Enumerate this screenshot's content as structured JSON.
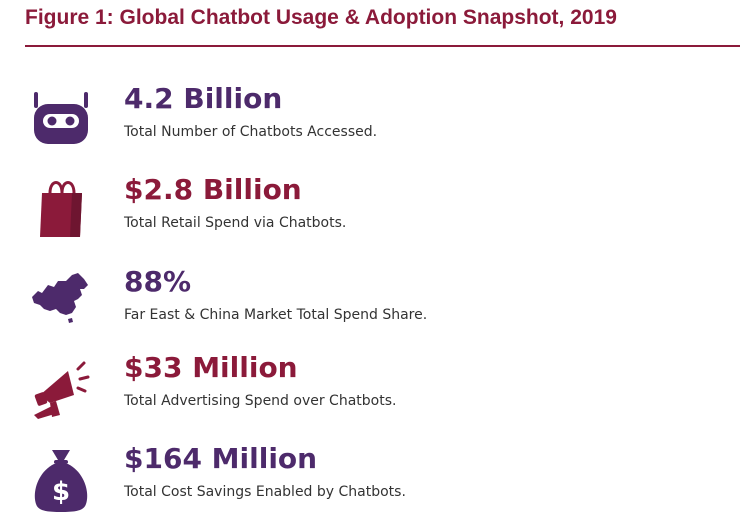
{
  "title": "Figure 1: Global Chatbot Usage & Adoption Snapshot, 2019",
  "colors": {
    "maroon": "#8b1a3a",
    "purple": "#4d2a6b",
    "text": "#333333"
  },
  "stats": [
    {
      "value": "4.2 Billion",
      "description": "Total Number of Chatbots Accessed.",
      "icon": "robot-head-icon",
      "color": "#4d2a6b"
    },
    {
      "value": "$2.8 Billion",
      "description": "Total Retail Spend via Chatbots.",
      "icon": "shopping-bag-icon",
      "color": "#8b1a3a"
    },
    {
      "value": "88%",
      "description": "Far East & China Market Total Spend Share.",
      "icon": "china-map-icon",
      "color": "#4d2a6b"
    },
    {
      "value": "$33 Million",
      "description": "Total Advertising Spend over Chatbots.",
      "icon": "megaphone-icon",
      "color": "#8b1a3a"
    },
    {
      "value": "$164 Million",
      "description": "Total Cost Savings Enabled by Chatbots.",
      "icon": "money-bag-icon",
      "color": "#4d2a6b"
    }
  ]
}
